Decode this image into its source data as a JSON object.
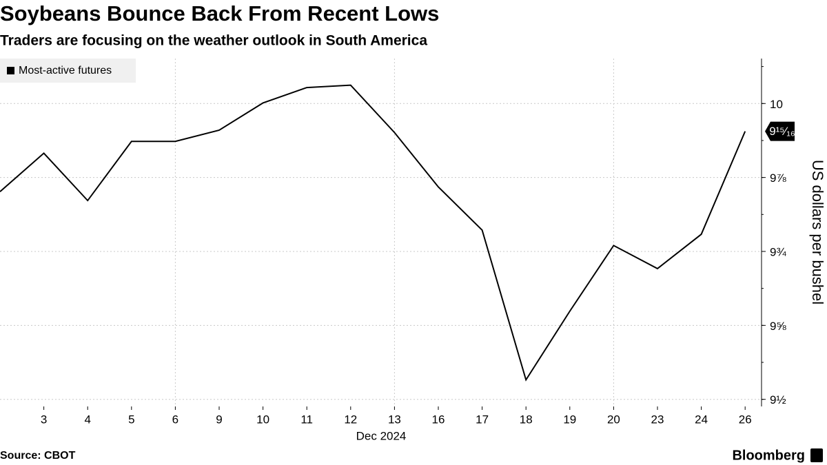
{
  "chart_data": {
    "type": "line",
    "title": "Soybeans Bounce Back From Recent Lows",
    "subtitle": "Traders are focusing on the weather outlook in South America",
    "y_axis_label": "US dollars per bushel",
    "x_axis_label": "Dec 2024",
    "source": "Source: CBOT",
    "brand": "Bloomberg",
    "categories": [
      null,
      "3",
      "4",
      "5",
      "6",
      "9",
      "10",
      "11",
      "12",
      "13",
      "16",
      "17",
      "18",
      "19",
      "20",
      "23",
      "24",
      "26"
    ],
    "series": [
      {
        "name": "Most-active futures",
        "color": "#000000",
        "values": [
          9.851,
          9.916,
          9.836,
          9.936,
          9.936,
          9.955,
          10.001,
          10.027,
          10.031,
          9.951,
          9.859,
          9.786,
          9.533,
          9.649,
          9.76,
          9.721,
          9.779,
          9.953
        ]
      }
    ],
    "last_value_label": "9¹⁵⁄₁₆",
    "ylim": [
      9.488,
      10.076
    ],
    "yticks": [
      {
        "value": 9.5,
        "label": "9½"
      },
      {
        "value": 9.625,
        "label": "9⅝"
      },
      {
        "value": 9.75,
        "label": "9¾"
      },
      {
        "value": 9.875,
        "label": "9⅞"
      },
      10
    ],
    "grid": true,
    "legend": "top-left"
  }
}
